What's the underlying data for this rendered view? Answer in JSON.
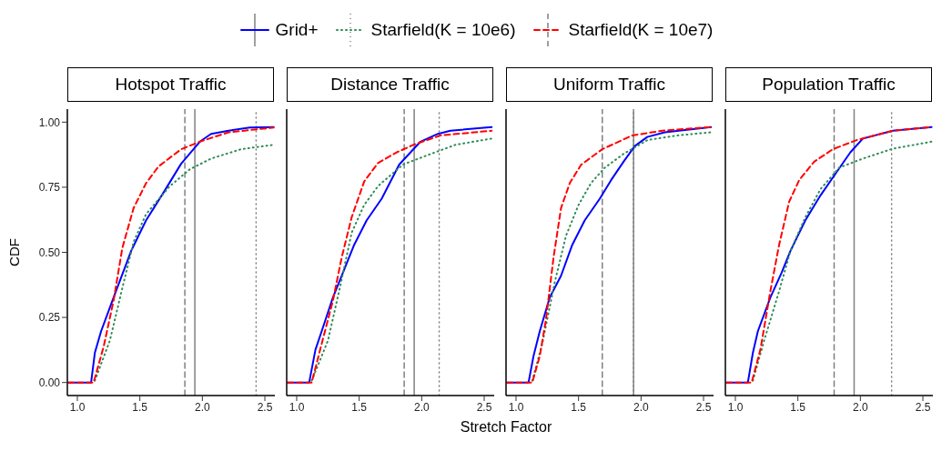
{
  "chart_data": [
    {
      "type": "line",
      "title": "Hotspot Traffic",
      "ylabel": "CDF",
      "legend": "top",
      "tick_labels": true,
      "xlim": [
        0.92,
        2.58
      ],
      "xticks": [
        {
          "value": 1,
          "label": "1.0"
        },
        {
          "value": 1.5,
          "label": "1.5"
        },
        {
          "value": 2,
          "label": "2.0"
        },
        {
          "value": 2.5,
          "label": "2.5"
        }
      ],
      "ylim": [
        -0.05,
        1.05
      ],
      "yticks": [
        {
          "value": 0,
          "label": "0.00"
        },
        {
          "value": 0.25,
          "label": "0.25"
        },
        {
          "value": 0.5,
          "label": "0.50"
        },
        {
          "value": 0.75,
          "label": "0.75"
        },
        {
          "value": 1,
          "label": "1.00"
        }
      ],
      "grid": false,
      "series": [
        {
          "name": "Grid+",
          "color": "#0000ff",
          "line_style": "solid",
          "x": [
            0.93,
            1.11,
            1.14,
            1.19,
            1.29,
            1.43,
            1.55,
            1.69,
            1.83,
            1.98,
            2.07,
            2.21,
            2.38,
            2.57
          ],
          "values": [
            0,
            0,
            0.114,
            0.197,
            0.327,
            0.505,
            0.623,
            0.73,
            0.84,
            0.925,
            0.955,
            0.967,
            0.979,
            0.981
          ]
        },
        {
          "name": "Starfield(K = 10e6)",
          "color": "#2e8b57",
          "line_style": "dotted",
          "x": [
            1.14,
            1.26,
            1.36,
            1.45,
            1.55,
            1.74,
            1.9,
            2.07,
            2.31,
            2.57
          ],
          "values": [
            0.007,
            0.161,
            0.363,
            0.54,
            0.647,
            0.754,
            0.819,
            0.86,
            0.896,
            0.913
          ]
        },
        {
          "name": "Starfield(K = 10e7)",
          "color": "#ff0000",
          "line_style": "dashed",
          "x": [
            0.93,
            1.13,
            1.21,
            1.29,
            1.36,
            1.45,
            1.55,
            1.65,
            1.83,
            1.98,
            2.21,
            2.57
          ],
          "values": [
            0,
            0,
            0.137,
            0.315,
            0.517,
            0.67,
            0.766,
            0.83,
            0.896,
            0.925,
            0.961,
            0.979
          ]
        }
      ],
      "ref_lines": [
        {
          "axis": "x",
          "value": 1.86,
          "color": "#808080",
          "line_style": "dashed"
        },
        {
          "axis": "x",
          "value": 1.94,
          "color": "#808080",
          "line_style": "solid"
        },
        {
          "axis": "x",
          "value": 2.43,
          "color": "#808080",
          "line_style": "dotted"
        }
      ]
    },
    {
      "type": "line",
      "title": "Distance Traffic",
      "xlabel": "Stretch Factor",
      "tick_labels": "x",
      "xlim": [
        0.92,
        2.58
      ],
      "xticks": [
        {
          "value": 1,
          "label": "1.0"
        },
        {
          "value": 1.5,
          "label": "1.5"
        },
        {
          "value": 2,
          "label": "2.0"
        },
        {
          "value": 2.5,
          "label": "2.5"
        }
      ],
      "ylim": [
        -0.05,
        1.05
      ],
      "grid": false,
      "series": [
        {
          "color": "#0000ff",
          "line_style": "solid",
          "x": [
            0.93,
            1.1,
            1.15,
            1.2,
            1.29,
            1.37,
            1.46,
            1.56,
            1.68,
            1.82,
            1.99,
            2.13,
            2.23,
            2.56
          ],
          "values": [
            0,
            0,
            0.126,
            0.197,
            0.327,
            0.422,
            0.529,
            0.623,
            0.706,
            0.837,
            0.925,
            0.955,
            0.967,
            0.981
          ]
        },
        {
          "color": "#2e8b57",
          "line_style": "dotted",
          "x": [
            1.12,
            1.25,
            1.35,
            1.44,
            1.54,
            1.65,
            1.85,
            2.04,
            2.27,
            2.56
          ],
          "values": [
            0.007,
            0.161,
            0.374,
            0.576,
            0.682,
            0.754,
            0.837,
            0.872,
            0.913,
            0.937
          ]
        },
        {
          "color": "#ff0000",
          "line_style": "dashed",
          "x": [
            0.93,
            1.12,
            1.2,
            1.29,
            1.36,
            1.44,
            1.54,
            1.65,
            1.8,
            1.94,
            2.15,
            2.56
          ],
          "values": [
            0,
            0,
            0.149,
            0.315,
            0.48,
            0.635,
            0.772,
            0.843,
            0.884,
            0.914,
            0.949,
            0.967
          ]
        }
      ],
      "ref_lines": [
        {
          "axis": "x",
          "value": 1.86,
          "color": "#808080",
          "line_style": "dashed"
        },
        {
          "axis": "x",
          "value": 1.94,
          "color": "#808080",
          "line_style": "solid"
        },
        {
          "axis": "x",
          "value": 2.14,
          "color": "#808080",
          "line_style": "dotted"
        }
      ]
    },
    {
      "type": "line",
      "title": "Uniform Traffic",
      "tick_labels": "x",
      "xlim": [
        0.92,
        2.58
      ],
      "xticks": [
        {
          "value": 1,
          "label": "1.0"
        },
        {
          "value": 1.5,
          "label": "1.5"
        },
        {
          "value": 2,
          "label": "2.0"
        },
        {
          "value": 2.5,
          "label": "2.5"
        }
      ],
      "ylim": [
        -0.05,
        1.05
      ],
      "grid": false,
      "series": [
        {
          "color": "#0000ff",
          "line_style": "solid",
          "x": [
            0.93,
            1.1,
            1.14,
            1.19,
            1.27,
            1.36,
            1.45,
            1.55,
            1.67,
            1.76,
            1.86,
            1.95,
            2.05,
            2.19,
            2.56
          ],
          "values": [
            0,
            0,
            0.102,
            0.197,
            0.327,
            0.41,
            0.529,
            0.623,
            0.706,
            0.777,
            0.848,
            0.908,
            0.943,
            0.961,
            0.981
          ]
        },
        {
          "color": "#2e8b57",
          "line_style": "dotted",
          "x": [
            1.13,
            1.21,
            1.31,
            1.4,
            1.5,
            1.6,
            1.71,
            1.86,
            2.05,
            2.29,
            2.56
          ],
          "values": [
            0.007,
            0.149,
            0.386,
            0.564,
            0.682,
            0.766,
            0.825,
            0.878,
            0.931,
            0.949,
            0.961
          ]
        },
        {
          "color": "#ff0000",
          "line_style": "dashed",
          "x": [
            0.93,
            1.13,
            1.19,
            1.24,
            1.3,
            1.36,
            1.43,
            1.52,
            1.69,
            1.93,
            2.17,
            2.56
          ],
          "values": [
            0,
            0,
            0.102,
            0.244,
            0.48,
            0.67,
            0.766,
            0.836,
            0.896,
            0.949,
            0.967,
            0.981
          ]
        }
      ],
      "ref_lines": [
        {
          "axis": "x",
          "value": 1.69,
          "color": "#808080",
          "line_style": "dashed"
        },
        {
          "axis": "x",
          "value": 1.94,
          "color": "#808080",
          "line_style": "solid"
        },
        {
          "axis": "x",
          "value": 1.94,
          "color": "#808080",
          "line_style": "dotted"
        }
      ]
    },
    {
      "type": "line",
      "title": "Population Traffic",
      "tick_labels": "x",
      "xlim": [
        0.92,
        2.58
      ],
      "xticks": [
        {
          "value": 1,
          "label": "1.0"
        },
        {
          "value": 1.5,
          "label": "1.5"
        },
        {
          "value": 2,
          "label": "2.0"
        },
        {
          "value": 2.5,
          "label": "2.5"
        }
      ],
      "ylim": [
        -0.05,
        1.05
      ],
      "grid": false,
      "series": [
        {
          "color": "#0000ff",
          "line_style": "solid",
          "x": [
            0.93,
            1.1,
            1.14,
            1.18,
            1.28,
            1.37,
            1.44,
            1.56,
            1.68,
            1.8,
            1.92,
            2.02,
            2.26,
            2.57
          ],
          "values": [
            0,
            0,
            0.114,
            0.197,
            0.327,
            0.422,
            0.505,
            0.623,
            0.718,
            0.801,
            0.884,
            0.937,
            0.967,
            0.981
          ]
        },
        {
          "color": "#2e8b57",
          "line_style": "dotted",
          "x": [
            1.14,
            1.23,
            1.35,
            1.44,
            1.56,
            1.68,
            1.83,
            2.02,
            2.26,
            2.57
          ],
          "values": [
            0.007,
            0.161,
            0.351,
            0.505,
            0.635,
            0.742,
            0.825,
            0.86,
            0.898,
            0.925
          ]
        },
        {
          "color": "#ff0000",
          "line_style": "dashed",
          "x": [
            0.93,
            1.13,
            1.2,
            1.28,
            1.35,
            1.43,
            1.51,
            1.63,
            1.78,
            1.97,
            2.26,
            2.57
          ],
          "values": [
            0,
            0,
            0.126,
            0.351,
            0.529,
            0.694,
            0.777,
            0.848,
            0.896,
            0.931,
            0.967,
            0.981
          ]
        }
      ],
      "ref_lines": [
        {
          "axis": "x",
          "value": 1.79,
          "color": "#808080",
          "line_style": "dashed"
        },
        {
          "axis": "x",
          "value": 1.95,
          "color": "#808080",
          "line_style": "solid"
        },
        {
          "axis": "x",
          "value": 2.25,
          "color": "#808080",
          "line_style": "dotted"
        }
      ]
    }
  ]
}
